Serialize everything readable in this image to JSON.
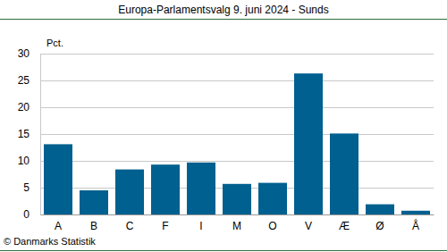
{
  "chart_data": {
    "type": "bar",
    "title": "Europa-Parlamentsvalg 9. juni 2024 - Sunds",
    "y_label": "Pct.",
    "annotation": "© Danmarks Statistik",
    "categories": [
      "A",
      "B",
      "C",
      "F",
      "I",
      "M",
      "O",
      "V",
      "Æ",
      "Ø",
      "Å"
    ],
    "values": [
      13.1,
      4.5,
      8.4,
      9.3,
      9.7,
      5.7,
      5.9,
      26.3,
      15.1,
      1.9,
      0.7
    ],
    "color": "#00608f",
    "ylim": [
      0,
      30
    ],
    "yticks": [
      0,
      5,
      10,
      15,
      20,
      25,
      30
    ],
    "grid": true
  }
}
